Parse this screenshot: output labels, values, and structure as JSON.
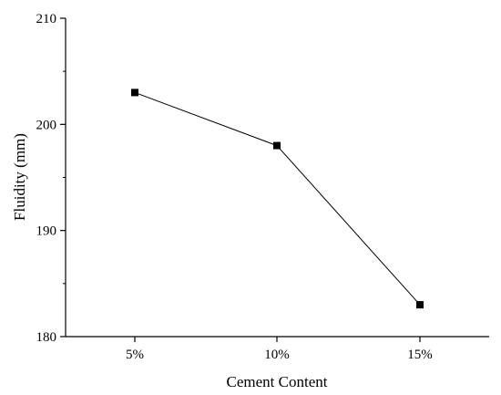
{
  "chart_data": {
    "type": "line",
    "categories": [
      "5%",
      "10%",
      "15%"
    ],
    "series": [
      {
        "values": [
          203,
          198,
          183
        ],
        "marker": "square",
        "color": "#000000"
      }
    ],
    "xlabel": "Cement Content",
    "ylabel": "Fluidity (mm)",
    "ylim": [
      180,
      210
    ],
    "yticks": [
      "180",
      "190",
      "200",
      "210"
    ],
    "grid": false,
    "legend": "none"
  }
}
